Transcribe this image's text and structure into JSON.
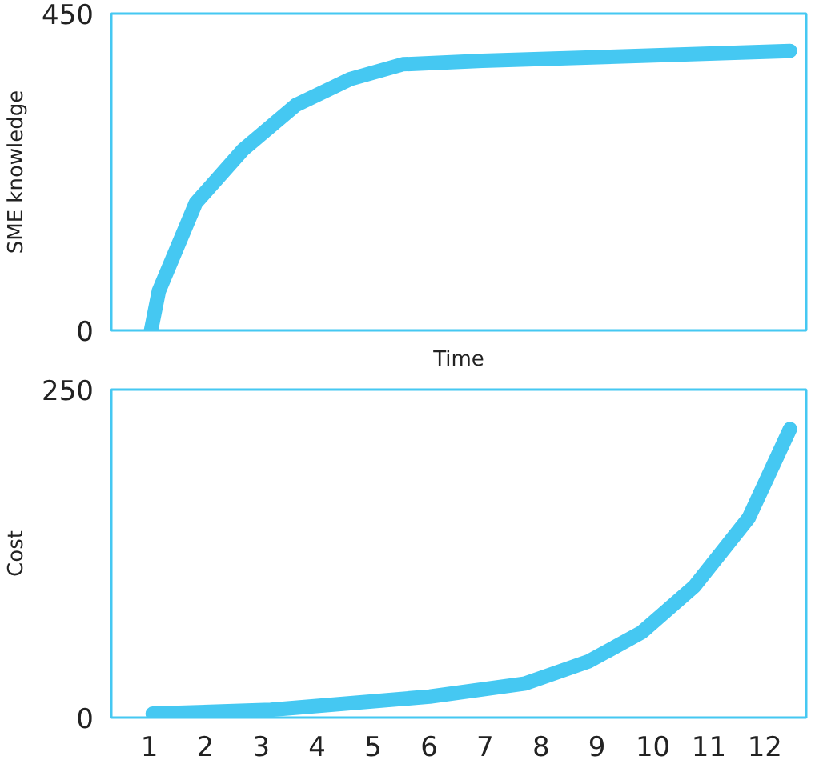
{
  "chart_data": [
    {
      "type": "line",
      "xlabel": "Time",
      "ylabel": "SME knowledge",
      "x": [
        1.03,
        1.17,
        1.83,
        2.68,
        3.62,
        4.59,
        5.53,
        6.95,
        9.8,
        12.45
      ],
      "series": [
        {
          "color": "#45c8f2",
          "values": [
            0,
            56,
            181,
            257,
            320,
            357,
            378,
            383,
            390,
            397
          ]
        }
      ],
      "xlim": [
        0.32,
        12.74
      ],
      "xticks": [
        1,
        2,
        3,
        4,
        5,
        6,
        7,
        8,
        9,
        10,
        11,
        12
      ],
      "ylim": [
        0,
        450
      ],
      "yticks": [
        0,
        450
      ],
      "tick_labels": "y"
    },
    {
      "type": "line",
      "ylabel": "Cost",
      "x": [
        1.06,
        3.17,
        6.01,
        7.72,
        8.86,
        9.8,
        10.74,
        11.71,
        12.45
      ],
      "series": [
        {
          "color": "#45c8f2",
          "values": [
            3,
            6,
            16,
            26,
            43,
            65,
            100,
            152,
            220
          ]
        }
      ],
      "xlim": [
        0.32,
        12.74
      ],
      "xticks": [
        1,
        2,
        3,
        4,
        5,
        6,
        7,
        8,
        9,
        10,
        11,
        12
      ],
      "ylim": [
        0,
        250
      ],
      "yticks": [
        0,
        250
      ]
    }
  ]
}
